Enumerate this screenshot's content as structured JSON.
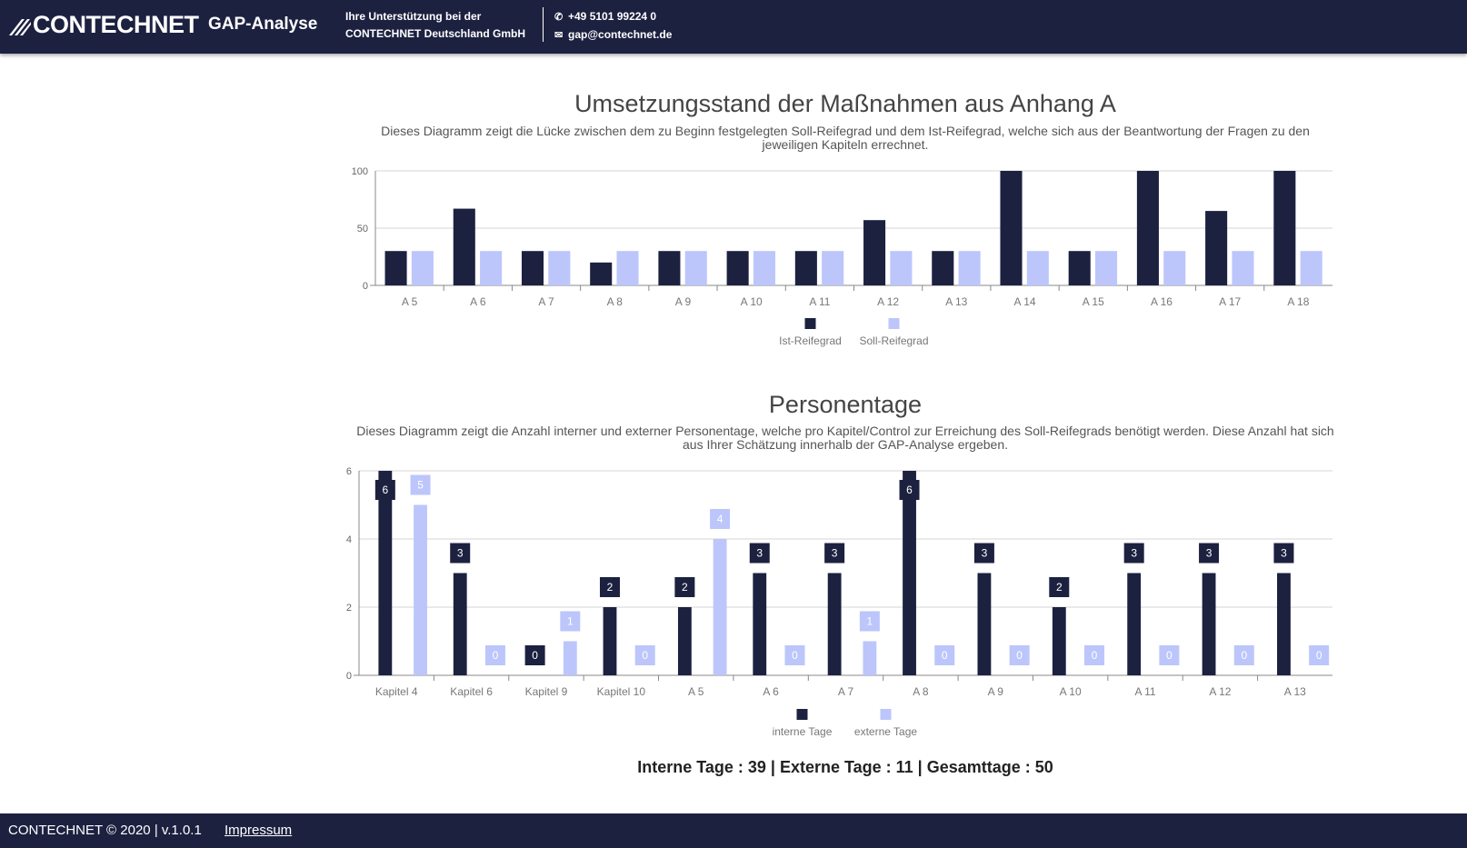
{
  "header": {
    "logo": "CONTECHNET",
    "app_title": "GAP-Analyse",
    "support_line1": "Ihre Unterstützung bei der",
    "support_line2": "CONTECHNET Deutschland GmbH",
    "phone": "+49 5101 99224 0",
    "email": "gap@contechnet.de"
  },
  "colors": {
    "ist": "#1d2140",
    "soll": "#bcc6fb",
    "header_bg": "#1d2140"
  },
  "chart_data": [
    {
      "type": "bar",
      "title": "Umsetzungsstand der Maßnahmen aus Anhang A",
      "subtitle": "Dieses Diagramm zeigt die Lücke zwischen dem zu Beginn festgelegten Soll-Reifegrad und dem Ist-Reifegrad, welche sich aus der Beantwortung der Fragen zu den jeweiligen Kapiteln errechnet.",
      "categories": [
        "A 5",
        "A 6",
        "A 7",
        "A 8",
        "A 9",
        "A 10",
        "A 11",
        "A 12",
        "A 13",
        "A 14",
        "A 15",
        "A 16",
        "A 17",
        "A 18"
      ],
      "series": [
        {
          "name": "Ist-Reifegrad",
          "values": [
            30,
            67,
            30,
            20,
            30,
            30,
            30,
            57,
            30,
            100,
            30,
            100,
            65,
            100
          ]
        },
        {
          "name": "Soll-Reifegrad",
          "values": [
            30,
            30,
            30,
            30,
            30,
            30,
            30,
            30,
            30,
            30,
            30,
            30,
            30,
            30
          ]
        }
      ],
      "ylim": [
        0,
        100
      ],
      "yticks": [
        "0",
        "50",
        "100"
      ],
      "grid": true,
      "legend": "bottom"
    },
    {
      "type": "bar",
      "title": "Personentage",
      "subtitle": "Dieses Diagramm zeigt die Anzahl interner und externer Personentage, welche pro Kapitel/Control zur Erreichung des Soll-Reifegrads benötigt werden. Diese Anzahl hat sich aus Ihrer Schätzung innerhalb der GAP-Analyse ergeben.",
      "categories": [
        "Kapitel 4",
        "Kapitel 6",
        "Kapitel 9",
        "Kapitel 10",
        "A 5",
        "A 6",
        "A 7",
        "A 8",
        "A 9",
        "A 10",
        "A 11",
        "A 12",
        "A 13"
      ],
      "series": [
        {
          "name": "interne Tage",
          "values": [
            6,
            3,
            0,
            2,
            2,
            3,
            3,
            6,
            3,
            2,
            3,
            3,
            3
          ]
        },
        {
          "name": "externe Tage",
          "values": [
            5,
            0,
            1,
            0,
            4,
            0,
            1,
            0,
            0,
            0,
            0,
            0,
            0
          ]
        }
      ],
      "ylim": [
        0,
        6
      ],
      "yticks": [
        "0",
        "2",
        "4",
        "6"
      ],
      "grid": true,
      "legend": "bottom",
      "data_labels": true
    }
  ],
  "summary": "Interne Tage : 39 | Externe Tage : 11 | Gesamttage : 50",
  "footer": {
    "copyright": "CONTECHNET © 2020 | v.1.0.1",
    "impressum": "Impressum"
  }
}
